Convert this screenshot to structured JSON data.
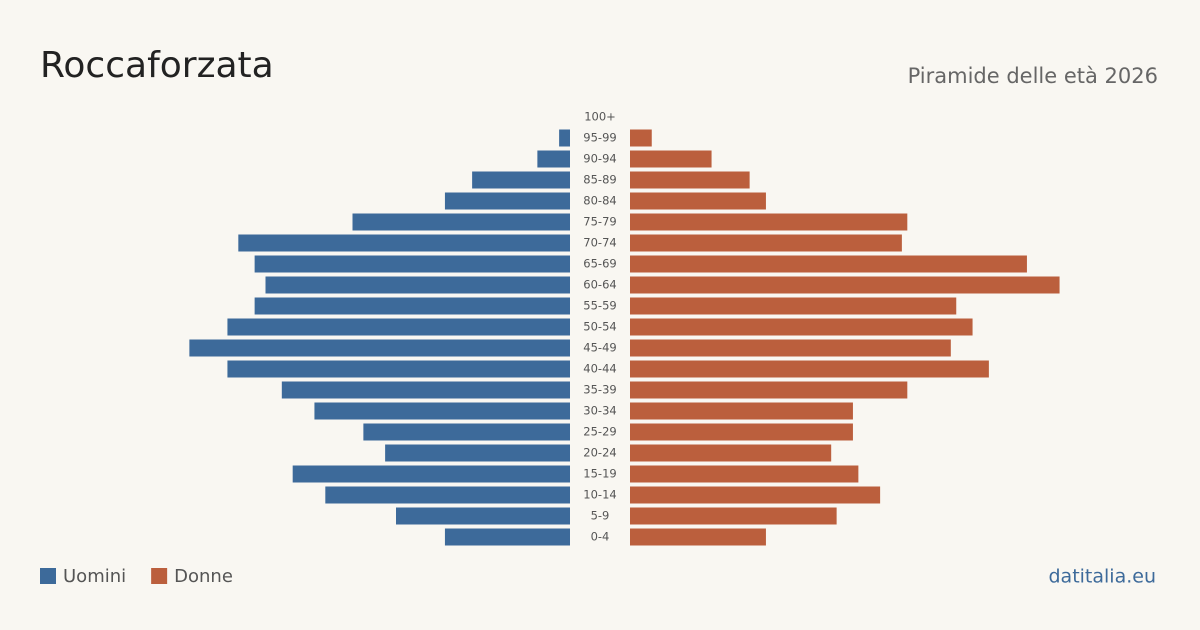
{
  "chart_data": {
    "type": "pyramid",
    "title": "Roccaforzata",
    "subtitle": "Piramide delle età 2026",
    "source": "datitalia.eu",
    "categories": [
      "100+",
      "95-99",
      "90-94",
      "85-89",
      "80-84",
      "75-79",
      "70-74",
      "65-69",
      "60-64",
      "55-59",
      "50-54",
      "45-49",
      "40-44",
      "35-39",
      "30-34",
      "25-29",
      "20-24",
      "15-19",
      "10-14",
      "5-9",
      "0-4"
    ],
    "series": [
      {
        "name": "Uomini",
        "color": "#3d6a9a",
        "values": [
          0,
          2,
          6,
          18,
          23,
          40,
          61,
          58,
          56,
          58,
          63,
          70,
          63,
          53,
          47,
          38,
          34,
          51,
          45,
          32,
          23
        ]
      },
      {
        "name": "Donne",
        "color": "#bb5f3d",
        "values": [
          0,
          4,
          15,
          22,
          25,
          51,
          50,
          73,
          79,
          60,
          63,
          59,
          66,
          51,
          41,
          41,
          37,
          42,
          46,
          38,
          25
        ]
      }
    ],
    "xlim": [
      0,
      80
    ]
  }
}
